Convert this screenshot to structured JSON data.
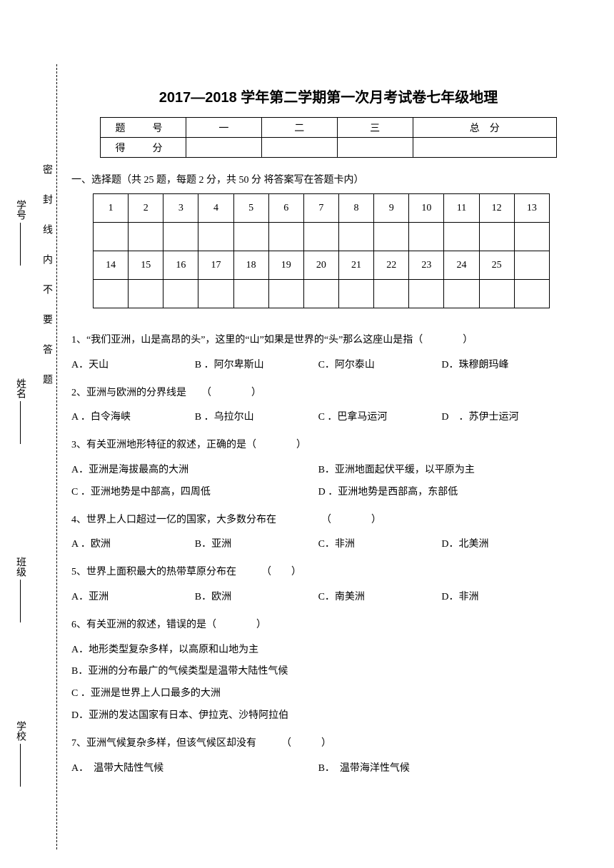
{
  "sidebar": {
    "seal_text": "密封线内不要答题",
    "labels": [
      "学校",
      "班级",
      "姓名",
      "学号"
    ]
  },
  "title": "2017—2018 学年第二学期第一次月考试卷七年级地理",
  "score_table": {
    "row1": [
      "题　号",
      "一",
      "二",
      "三",
      "总　分"
    ],
    "row2_label": "得　分"
  },
  "section1": "一、选择题（共 25 题，每题 2 分，共 50 分 将答案写在答题卡内）",
  "answer_nums_1": [
    "1",
    "2",
    "3",
    "4",
    "5",
    "6",
    "7",
    "8",
    "9",
    "10",
    "11",
    "12",
    "13"
  ],
  "answer_nums_2": [
    "14",
    "15",
    "16",
    "17",
    "18",
    "19",
    "20",
    "21",
    "22",
    "23",
    "24",
    "25",
    ""
  ],
  "questions": [
    {
      "q": "1、“我们亚洲，山是高昂的头”，这里的“山”如果是世界的“头”那么这座山是指（　　　　）",
      "opts": [
        "A．天山",
        "B ．阿尔卑斯山",
        "C．阿尔泰山",
        "D．珠穆朗玛峰"
      ],
      "layout": "opt4"
    },
    {
      "q": "2、亚洲与欧洲的分界线是　　（　　　　）",
      "opts": [
        "A ．白令海峡",
        "B ．乌拉尔山",
        "C ．巴拿马运河",
        "D　．苏伊士运河"
      ],
      "layout": "opt4"
    },
    {
      "q": "3、有关亚洲地形特征的叙述，正确的是（　　　　）",
      "opts": [
        "A．亚洲是海拔最高的大洲",
        "B．亚洲地面起伏平缓，以平原为主",
        "C ．亚洲地势是中部高，四周低",
        "D ．亚洲地势是西部高，东部低"
      ],
      "layout": "opt2"
    },
    {
      "q": "4、世界上人口超过一亿的国家，大多数分布在　　　　　（　　　　）",
      "opts": [
        "A ．欧洲",
        "B．亚洲",
        "C．非洲",
        "D．北美洲"
      ],
      "layout": "opt4"
    },
    {
      "q": "5、世界上面积最大的热带草原分布在　　　（　　）",
      "opts": [
        "A．亚洲",
        "B．欧洲",
        "C．南美洲",
        "D．非洲"
      ],
      "layout": "opt4"
    },
    {
      "q": "6、有关亚洲的叙述，错误的是（　　　　）",
      "opts": [
        "A．地形类型复杂多样，以高原和山地为主",
        "B．亚洲的分布最广的气候类型是温带大陆性气候",
        "C ．亚洲是世界上人口最多的大洲",
        "D．亚洲的发达国家有日本、伊拉克、沙特阿拉伯"
      ],
      "layout": "single"
    },
    {
      "q": "7、亚洲气候复杂多样，但该气候区却没有　　　（　　　）",
      "opts": [
        "A．　温带大陆性气候",
        "B．　温带海洋性气候"
      ],
      "layout": "opt2"
    }
  ]
}
